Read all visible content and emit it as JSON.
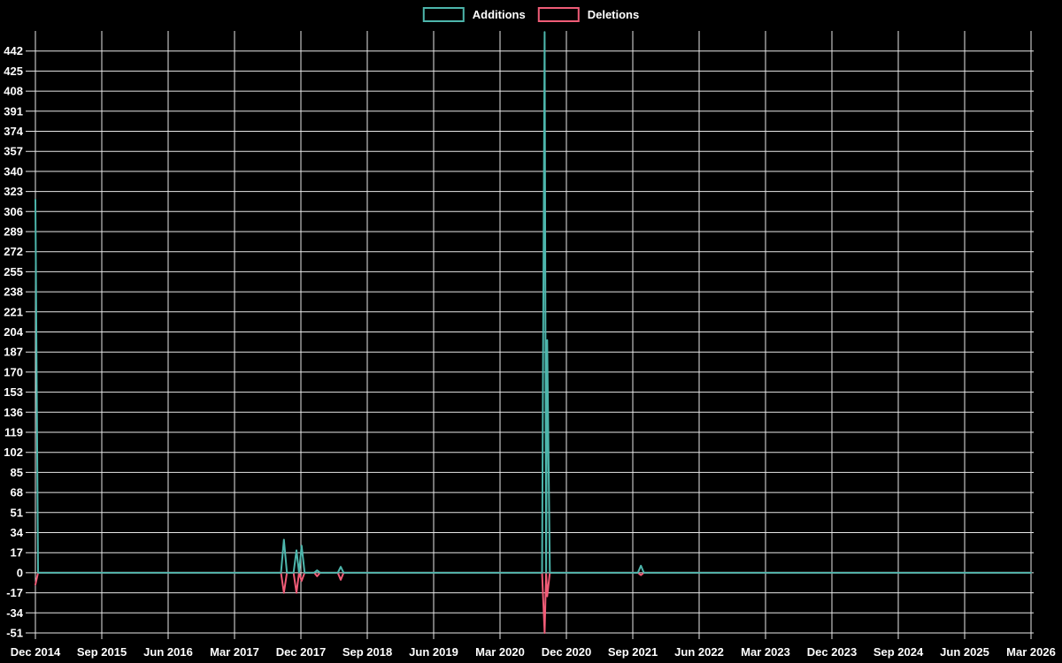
{
  "legend": {
    "items": [
      {
        "label": "Additions",
        "color": "#4db6ac"
      },
      {
        "label": "Deletions",
        "color": "#f05c77"
      }
    ]
  },
  "chart_data": {
    "type": "line",
    "title": "",
    "xlabel": "",
    "ylabel": "",
    "background": "#000000",
    "grid": true,
    "grid_color": "#e8e8e8",
    "text_color": "#ffffff",
    "legend_position": "top-center",
    "xlim": [
      0,
      135
    ],
    "ylim": [
      -51,
      459
    ],
    "x_ticks": [
      "Dec 2014",
      "Sep 2015",
      "Jun 2016",
      "Mar 2017",
      "Dec 2017",
      "Sep 2018",
      "Jun 2019",
      "Mar 2020",
      "Dec 2020",
      "Sep 2021",
      "Jun 2022",
      "Mar 2023",
      "Dec 2023",
      "Sep 2024",
      "Jun 2025",
      "Mar 2026"
    ],
    "x_tick_months": [
      0,
      9,
      18,
      27,
      36,
      45,
      54,
      63,
      72,
      81,
      90,
      99,
      108,
      117,
      126,
      135
    ],
    "y_ticks": [
      442,
      425,
      408,
      391,
      374,
      357,
      340,
      323,
      306,
      289,
      272,
      255,
      238,
      221,
      204,
      187,
      170,
      153,
      136,
      119,
      102,
      85,
      68,
      51,
      34,
      17,
      0,
      -17,
      -34,
      -51
    ],
    "notable_points": [
      {
        "period": "Dec 2014",
        "additions": 316,
        "deletions": -10
      },
      {
        "period": "Oct 2017",
        "additions": 28,
        "deletions": -17
      },
      {
        "period": "Dec 2017",
        "additions": 19,
        "deletions": -17
      },
      {
        "period": "Jan 2018",
        "additions": 23,
        "deletions": -7
      },
      {
        "period": "Mar 2018",
        "additions": 2,
        "deletions": -3
      },
      {
        "period": "Jun 2018",
        "additions": 5,
        "deletions": -6
      },
      {
        "period": "Sep 2020",
        "additions": 458,
        "deletions": -51
      },
      {
        "period": "Oct 2020",
        "additions": 197,
        "deletions": -20
      },
      {
        "period": "Nov 2021",
        "additions": 6,
        "deletions": -2
      }
    ],
    "series": [
      {
        "name": "Additions",
        "color": "#4db6ac",
        "line": [
          [
            0,
            316
          ],
          [
            0.36,
            0
          ],
          [
            33.3,
            0
          ],
          [
            33.7,
            28
          ],
          [
            34.1,
            0
          ],
          [
            35.0,
            0
          ],
          [
            35.4,
            19
          ],
          [
            35.75,
            0
          ],
          [
            36.1,
            23
          ],
          [
            36.5,
            0
          ],
          [
            37.8,
            0
          ],
          [
            38.2,
            2
          ],
          [
            38.6,
            0
          ],
          [
            41.0,
            0
          ],
          [
            41.4,
            5
          ],
          [
            41.8,
            0
          ],
          [
            68.7,
            0
          ],
          [
            69.05,
            458
          ],
          [
            69.25,
            0
          ],
          [
            69.4,
            197
          ],
          [
            69.75,
            0
          ],
          [
            81.7,
            0
          ],
          [
            82.1,
            6
          ],
          [
            82.5,
            0
          ],
          [
            135,
            0
          ]
        ]
      },
      {
        "name": "Deletions",
        "color": "#f05c77",
        "line": [
          [
            0,
            -10
          ],
          [
            0.36,
            0
          ],
          [
            33.3,
            0
          ],
          [
            33.7,
            -17
          ],
          [
            34.1,
            0
          ],
          [
            35.0,
            0
          ],
          [
            35.4,
            -17
          ],
          [
            35.75,
            0
          ],
          [
            36.1,
            -7
          ],
          [
            36.5,
            0
          ],
          [
            37.8,
            0
          ],
          [
            38.2,
            -3
          ],
          [
            38.6,
            0
          ],
          [
            41.0,
            0
          ],
          [
            41.4,
            -6
          ],
          [
            41.8,
            0
          ],
          [
            68.7,
            0
          ],
          [
            69.05,
            -51
          ],
          [
            69.25,
            0
          ],
          [
            69.4,
            -20
          ],
          [
            69.75,
            0
          ],
          [
            81.7,
            0
          ],
          [
            82.1,
            -2
          ],
          [
            82.5,
            0
          ],
          [
            135,
            0
          ]
        ]
      }
    ]
  }
}
